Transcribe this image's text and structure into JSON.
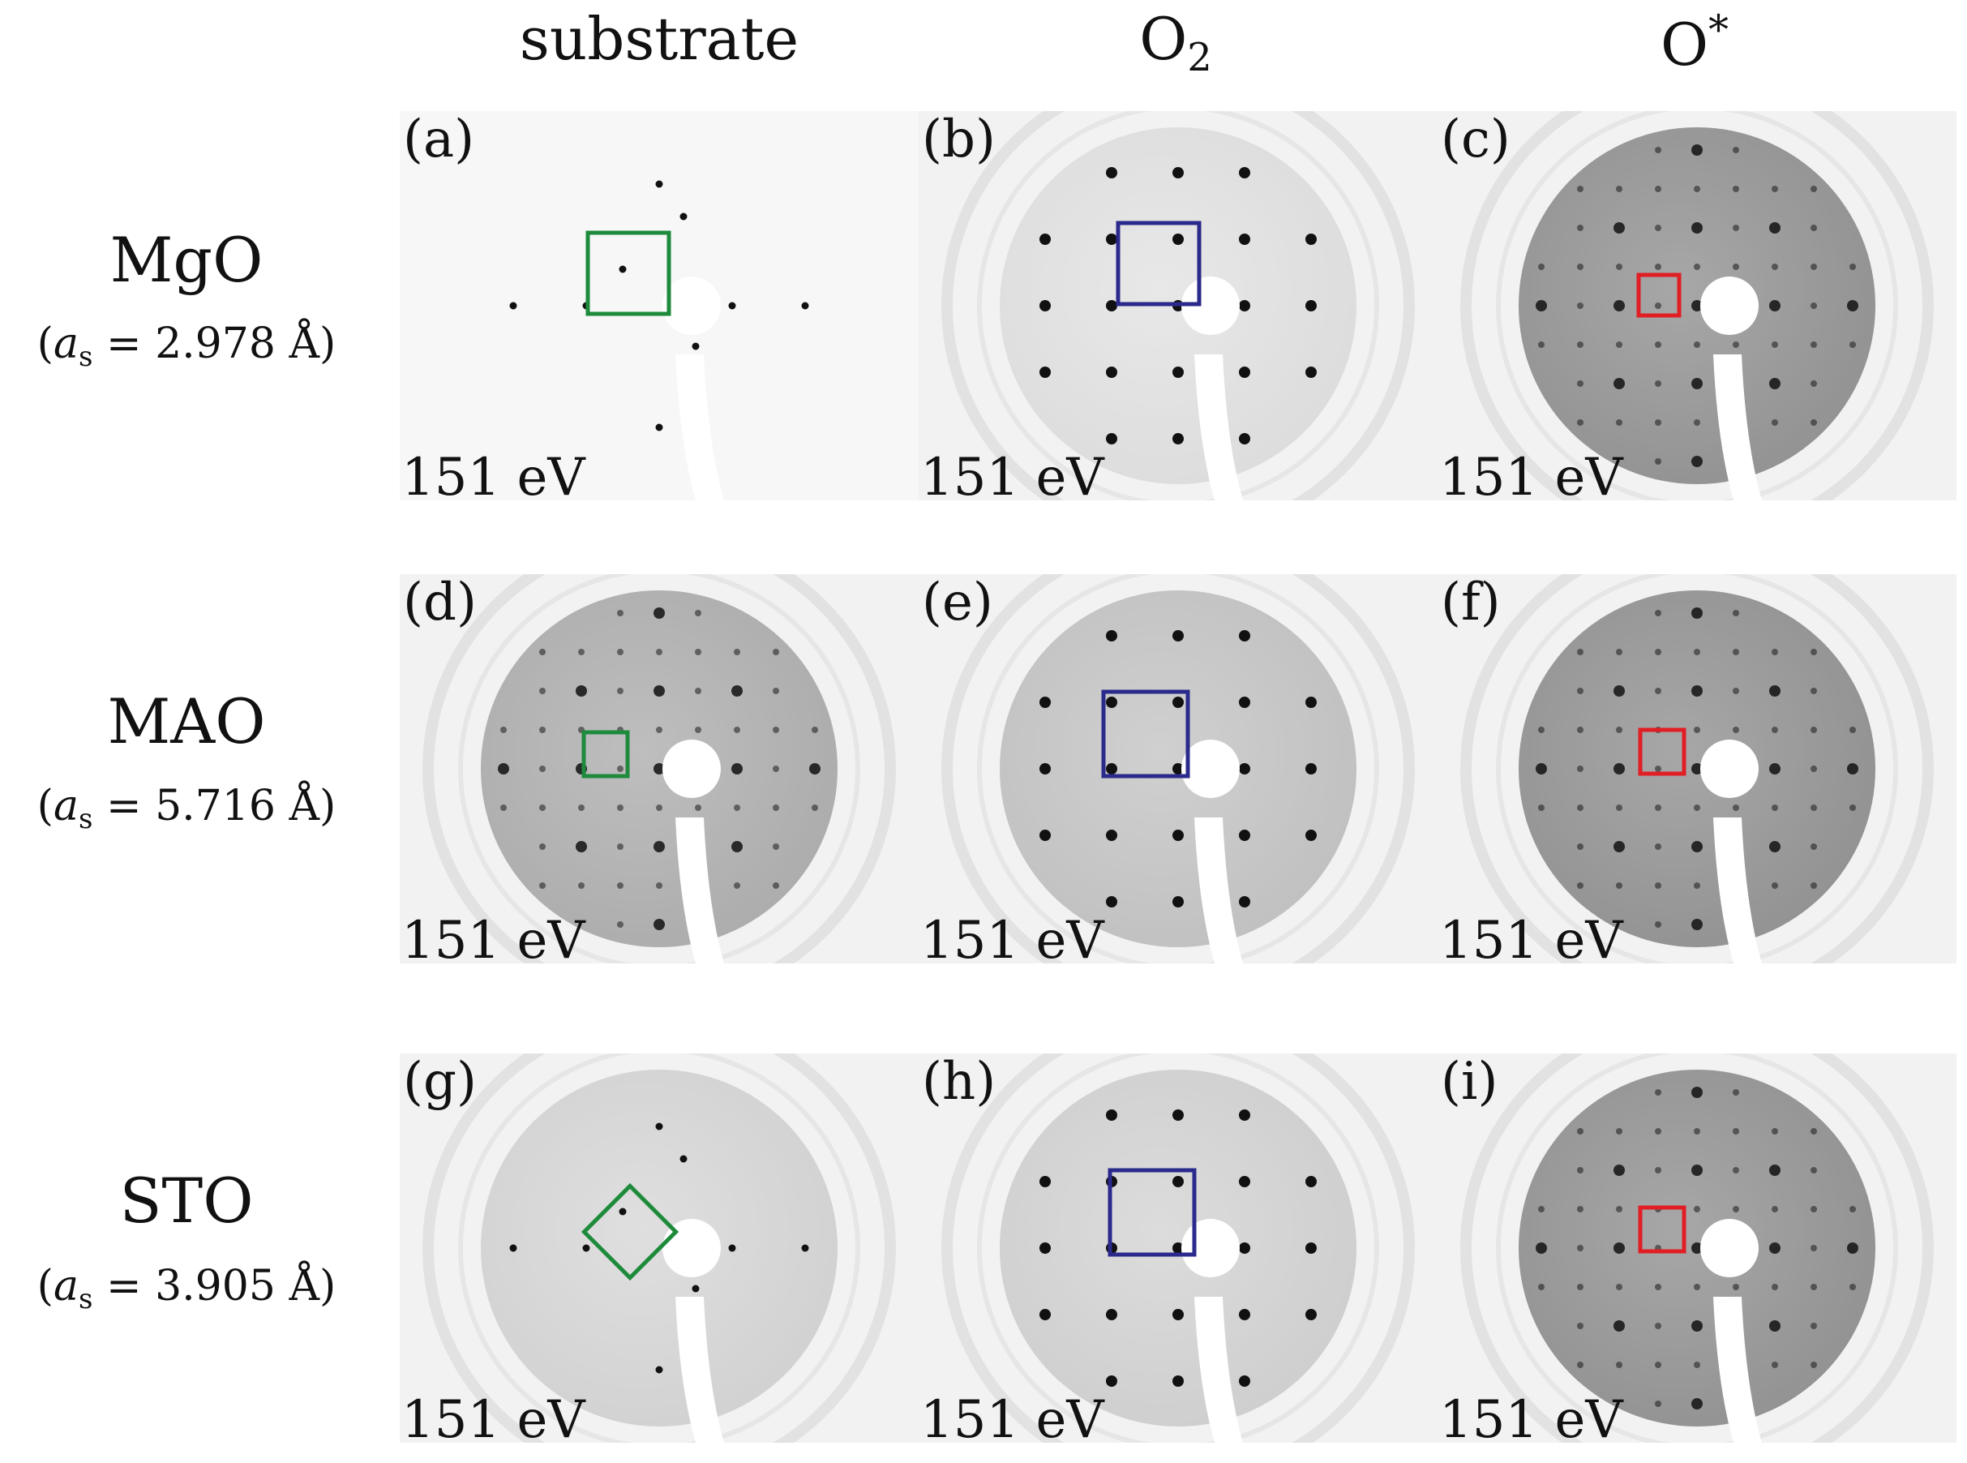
{
  "columns": [
    {
      "text": "substrate",
      "sub": "",
      "sup": ""
    },
    {
      "text": "O",
      "sub": "2",
      "sup": ""
    },
    {
      "text": "O",
      "sub": "",
      "sup": "*"
    }
  ],
  "rows": [
    {
      "name": "MgO",
      "param_open": "(",
      "param_a": "a",
      "param_s": "s",
      "param_rest": " = 2.978 Å)"
    },
    {
      "name": "MAO",
      "param_open": "(",
      "param_a": "a",
      "param_s": "s",
      "param_rest": " = 5.716 Å)"
    },
    {
      "name": "STO",
      "param_open": "(",
      "param_a": "a",
      "param_s": "s",
      "param_rest": " = 3.905 Å)"
    }
  ],
  "panels": [
    {
      "label": "(a)",
      "energy": "151 eV",
      "box_color": "#1e8a3c"
    },
    {
      "label": "(b)",
      "energy": "151 eV",
      "box_color": "#2a2a8c"
    },
    {
      "label": "(c)",
      "energy": "151 eV",
      "box_color": "#e01e24"
    },
    {
      "label": "(d)",
      "energy": "151 eV",
      "box_color": "#1e8a3c"
    },
    {
      "label": "(e)",
      "energy": "151 eV",
      "box_color": "#2a2a8c"
    },
    {
      "label": "(f)",
      "energy": "151 eV",
      "box_color": "#e01e24"
    },
    {
      "label": "(g)",
      "energy": "151 eV",
      "box_color": "#1e8a3c"
    },
    {
      "label": "(h)",
      "energy": "151 eV",
      "box_color": "#2a2a8c"
    },
    {
      "label": "(i)",
      "energy": "151 eV",
      "box_color": "#e01e24"
    }
  ]
}
